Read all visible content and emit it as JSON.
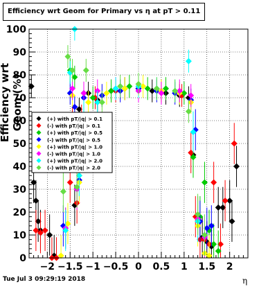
{
  "title": "Efficiency wrt Geom for Primary vs  η at pT > 0.11",
  "timestamp": "Tue Jul  3 09:29:19 2018",
  "chart_data": {
    "type": "scatter",
    "title": "Efficiency wrt Geom for Primary vs  η at pT > 0.11",
    "xlabel": "η",
    "ylabel": "Efficiency wrt Geom (%)",
    "xlim": [
      -2.4,
      2.4
    ],
    "ylim": [
      0,
      100
    ],
    "xticks": [
      -2,
      -1.5,
      -1,
      -0.5,
      0,
      0.5,
      1,
      1.5,
      2
    ],
    "xtick_labels": [
      "−2",
      "−1.5",
      "−1",
      "−0.5",
      "0",
      "0.5",
      "1",
      "1.5",
      "2"
    ],
    "yticks": [
      0,
      10,
      20,
      30,
      40,
      50,
      60,
      70,
      80,
      90,
      100
    ],
    "grid": true,
    "legend_position": "left",
    "series": [
      {
        "name": "(+) with pT/|q| > 0.1",
        "color": "#000000",
        "points": [
          [
            -2.35,
            75
          ],
          [
            -2.3,
            33
          ],
          [
            -2.25,
            25
          ],
          [
            -2.2,
            16
          ],
          [
            -2.15,
            12
          ],
          [
            -1.95,
            10
          ],
          [
            -1.85,
            1
          ],
          [
            -1.4,
            23
          ],
          [
            -1.3,
            65
          ],
          [
            -1.1,
            72
          ],
          [
            -0.9,
            69
          ],
          [
            -0.6,
            73
          ],
          [
            -0.3,
            74
          ],
          [
            0,
            74
          ],
          [
            0.3,
            73
          ],
          [
            0.6,
            72
          ],
          [
            0.9,
            71
          ],
          [
            1.1,
            70
          ],
          [
            1.2,
            45
          ],
          [
            1.3,
            18
          ],
          [
            1.4,
            9
          ],
          [
            1.5,
            7
          ],
          [
            1.6,
            5
          ],
          [
            1.75,
            22
          ],
          [
            1.85,
            22
          ],
          [
            2.0,
            25
          ],
          [
            2.05,
            16
          ],
          [
            2.15,
            40
          ]
        ]
      },
      {
        "name": "(-) with pT/|q| > 0.1",
        "color": "#ff0000",
        "points": [
          [
            -2.25,
            12
          ],
          [
            -2.15,
            11
          ],
          [
            -2.05,
            12
          ],
          [
            -1.9,
            0
          ],
          [
            -1.8,
            0
          ],
          [
            -1.5,
            33
          ],
          [
            -1.45,
            62
          ],
          [
            -1.35,
            24
          ],
          [
            -1.25,
            62
          ],
          [
            -0.95,
            70
          ],
          [
            -0.5,
            73
          ],
          [
            0,
            74
          ],
          [
            0.5,
            73
          ],
          [
            0.95,
            71
          ],
          [
            1.15,
            46
          ],
          [
            1.25,
            18
          ],
          [
            1.35,
            8
          ],
          [
            1.45,
            8
          ],
          [
            1.55,
            6
          ],
          [
            1.65,
            33
          ],
          [
            1.8,
            6
          ],
          [
            1.9,
            25
          ],
          [
            2.1,
            50
          ]
        ]
      },
      {
        "name": "(+) with pT/|q| > 0.5",
        "color": "#00cc00",
        "points": [
          [
            -1.6,
            13
          ],
          [
            -1.5,
            82
          ],
          [
            -1.4,
            79
          ],
          [
            -1.3,
            36
          ],
          [
            -1.2,
            72
          ],
          [
            -1.0,
            70
          ],
          [
            -0.6,
            73
          ],
          [
            -0.2,
            75
          ],
          [
            0.2,
            74
          ],
          [
            0.6,
            74
          ],
          [
            1.0,
            72
          ],
          [
            1.2,
            44
          ],
          [
            1.35,
            18
          ],
          [
            1.45,
            33
          ],
          [
            1.55,
            12
          ],
          [
            1.65,
            6
          ],
          [
            1.75,
            3
          ]
        ]
      },
      {
        "name": "(-) with pT/|q| > 0.5",
        "color": "#0000ff",
        "points": [
          [
            -1.65,
            14
          ],
          [
            -1.5,
            72
          ],
          [
            -1.4,
            66
          ],
          [
            -1.3,
            34
          ],
          [
            -1.2,
            70
          ],
          [
            -0.8,
            71
          ],
          [
            -0.4,
            73
          ],
          [
            0,
            74
          ],
          [
            0.4,
            73
          ],
          [
            0.8,
            72
          ],
          [
            1.15,
            69
          ],
          [
            1.25,
            56
          ],
          [
            1.35,
            16
          ],
          [
            1.5,
            13
          ],
          [
            1.6,
            14
          ]
        ]
      },
      {
        "name": "(+) with pT/|q| > 1.0",
        "color": "#ffff00",
        "points": [
          [
            -1.7,
            1
          ],
          [
            -1.55,
            15
          ],
          [
            -1.45,
            71
          ],
          [
            -1.3,
            33
          ],
          [
            -1.1,
            68
          ],
          [
            -0.7,
            72
          ],
          [
            -0.3,
            74
          ],
          [
            0.1,
            75
          ],
          [
            0.5,
            73
          ],
          [
            0.9,
            72
          ],
          [
            1.15,
            68
          ],
          [
            1.3,
            14
          ],
          [
            1.45,
            2
          ],
          [
            1.55,
            1
          ]
        ]
      },
      {
        "name": "(-) with pT/|q| > 1.0",
        "color": "#ff00ff",
        "points": [
          [
            -1.6,
            13
          ],
          [
            -1.45,
            74
          ],
          [
            -1.35,
            30
          ],
          [
            -1.2,
            72
          ],
          [
            -0.9,
            73
          ],
          [
            -0.5,
            74
          ],
          [
            0,
            73
          ],
          [
            0.5,
            72
          ],
          [
            0.9,
            73
          ],
          [
            1.15,
            71
          ],
          [
            1.3,
            17
          ],
          [
            1.45,
            9
          ]
        ]
      },
      {
        "name": "(+) with pT/|q| > 2.0",
        "color": "#00ffff",
        "points": [
          [
            -1.6,
            12
          ],
          [
            -1.5,
            81
          ],
          [
            -1.4,
            100
          ],
          [
            -1.3,
            36
          ],
          [
            -1.2,
            60
          ],
          [
            -0.9,
            68
          ],
          [
            -0.5,
            74
          ],
          [
            0,
            75
          ],
          [
            0.4,
            74
          ],
          [
            0.8,
            73
          ],
          [
            1.1,
            86
          ],
          [
            1.2,
            55
          ],
          [
            1.3,
            16
          ],
          [
            1.45,
            10
          ]
        ]
      },
      {
        "name": "(-) with pT/|q| > 2.0",
        "color": "#66dd44",
        "points": [
          [
            -1.65,
            29
          ],
          [
            -1.55,
            88
          ],
          [
            -1.45,
            82
          ],
          [
            -1.35,
            31
          ],
          [
            -1.15,
            82
          ],
          [
            -0.8,
            68
          ],
          [
            -0.4,
            75
          ],
          [
            0,
            76
          ],
          [
            0.4,
            74
          ],
          [
            0.8,
            73
          ],
          [
            1.1,
            64
          ],
          [
            1.3,
            19
          ],
          [
            1.45,
            10
          ]
        ]
      }
    ]
  }
}
